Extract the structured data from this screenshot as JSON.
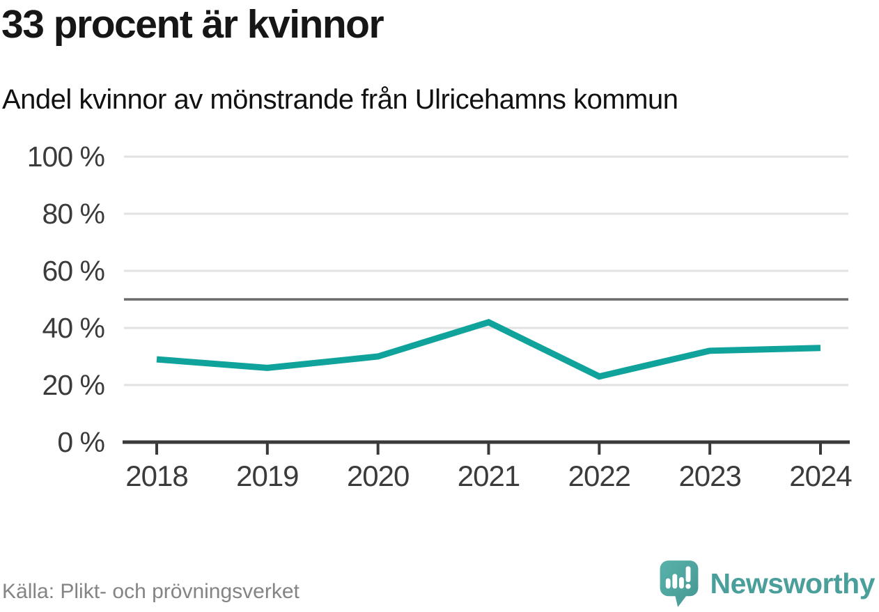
{
  "header": {
    "title": "33 procent är kvinnor",
    "subtitle": "Andel kvinnor av mönstrande från Ulricehamns kommun"
  },
  "footer": {
    "source": "Källa: Plikt- och prövningsverket",
    "brand": "Newsworthy"
  },
  "colors": {
    "line": "#10a39b",
    "grid": "#e2e2e2",
    "reference": "#6b6b6b",
    "axis": "#3a3a3a",
    "tick_label": "#3b3b3b",
    "title_text": "#161616",
    "source_text": "#848484",
    "brand_teal": "#4a9f9b"
  },
  "chart_data": {
    "type": "line",
    "title": "33 procent är kvinnor",
    "subtitle": "Andel kvinnor av mönstrande från Ulricehamns kommun",
    "x": [
      2018,
      2019,
      2020,
      2021,
      2022,
      2023,
      2024
    ],
    "series": [
      {
        "name": "Andel kvinnor av mönstrande",
        "values": [
          29,
          26,
          30,
          42,
          23,
          32,
          33
        ]
      }
    ],
    "unit": "%",
    "ylim": [
      0,
      100
    ],
    "yticks": [
      0,
      20,
      40,
      60,
      80,
      100
    ],
    "ytick_format": "{v} %",
    "reference_line": 50,
    "grid": true,
    "legend": "none",
    "source": "Källa: Plikt- och prövningsverket"
  }
}
